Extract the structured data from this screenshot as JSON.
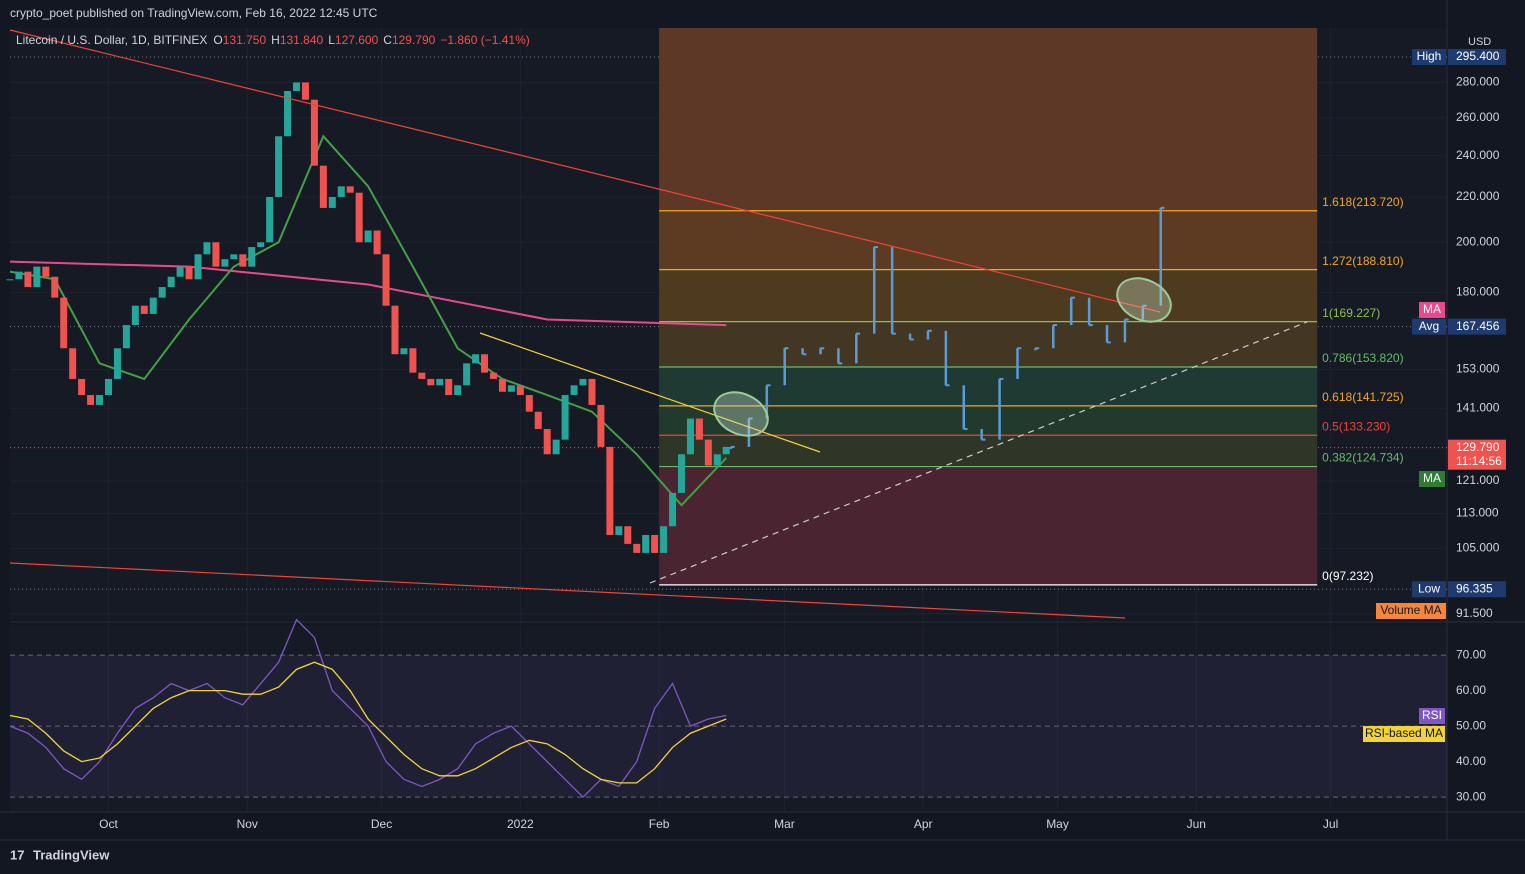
{
  "header": {
    "publisher": "crypto_poet published on TradingView.com, Feb 16, 2022 12:45 UTC",
    "currency": "USD",
    "brand": "TradingView"
  },
  "legend": {
    "symbol": "Litecoin / U.S. Dollar, 1D, BITFINEX",
    "ohlc": [
      {
        "key": "O",
        "value": "131.750"
      },
      {
        "key": "H",
        "value": "131.840"
      },
      {
        "key": "L",
        "value": "127.600"
      },
      {
        "key": "C",
        "value": "129.790"
      }
    ],
    "change": "−1.860 (−1.41%)"
  },
  "chart_data": [
    {
      "type": "candlestick",
      "log": true,
      "ylim": [
        90.3,
        314
      ],
      "xlim": [
        0,
        321
      ],
      "yticks": [
        {
          "value": 280,
          "label": "280.000"
        },
        {
          "value": 260,
          "label": "260.000"
        },
        {
          "value": 240,
          "label": "240.000"
        },
        {
          "value": 220,
          "label": "220.000"
        },
        {
          "value": 200,
          "label": "200.000"
        },
        {
          "value": 180,
          "label": "180.000"
        },
        {
          "value": 153,
          "label": "153.000"
        },
        {
          "value": 141,
          "label": "141.000"
        },
        {
          "value": 121,
          "label": "121.000"
        },
        {
          "value": 113,
          "label": "113.000"
        },
        {
          "value": 105,
          "label": "105.000"
        },
        {
          "value": 91.5,
          "label": "91.500"
        }
      ],
      "xticks": [
        {
          "value": 22,
          "label": "Oct"
        },
        {
          "value": 53,
          "label": "Nov"
        },
        {
          "value": 83,
          "label": "Dec"
        },
        {
          "value": 114,
          "label": "2022"
        },
        {
          "value": 145,
          "label": "Feb"
        },
        {
          "value": 173,
          "label": "Mar"
        },
        {
          "value": 204,
          "label": "Apr"
        },
        {
          "value": 234,
          "label": "May"
        },
        {
          "value": 265,
          "label": "Jun"
        },
        {
          "value": 295,
          "label": "Jul"
        }
      ],
      "up_color": "#26a69a",
      "down_color": "#ef5350",
      "x": [
        0,
        2,
        4,
        6,
        8,
        10,
        12,
        14,
        16,
        18,
        20,
        22,
        24,
        26,
        28,
        30,
        32,
        34,
        36,
        38,
        40,
        42,
        44,
        46,
        48,
        50,
        52,
        54,
        56,
        58,
        60,
        62,
        64,
        66,
        68,
        70,
        72,
        74,
        76,
        78,
        80,
        82,
        84,
        86,
        88,
        90,
        92,
        94,
        96,
        98,
        100,
        102,
        104,
        106,
        108,
        110,
        112,
        114,
        116,
        118,
        120,
        122,
        124,
        126,
        128,
        130,
        132,
        134,
        136,
        138,
        140,
        142,
        144,
        146,
        148,
        150,
        152,
        154,
        156,
        158,
        160
      ],
      "values": [
        185,
        188,
        182,
        190,
        186,
        178,
        160,
        150,
        145,
        142,
        145,
        150,
        160,
        168,
        175,
        172,
        178,
        182,
        186,
        190,
        185,
        195,
        200,
        190,
        193,
        195,
        190,
        198,
        200,
        220,
        250,
        275,
        280,
        270,
        235,
        215,
        220,
        225,
        222,
        200,
        205,
        195,
        175,
        158,
        160,
        152,
        150,
        148,
        150,
        145,
        148,
        155,
        158,
        152,
        150,
        146,
        148,
        145,
        140,
        135,
        128,
        132,
        145,
        148,
        150,
        142,
        130,
        108,
        110,
        106,
        104,
        108,
        104,
        110,
        118,
        128,
        138,
        132,
        125,
        128,
        130
      ],
      "projection": {
        "color": "#5b9bd5",
        "x": [
          161,
          165,
          169,
          173,
          177,
          181,
          185,
          189,
          193,
          197,
          201,
          205,
          209,
          213,
          217,
          221,
          225,
          229,
          233,
          237,
          241,
          245,
          249,
          253,
          257
        ],
        "values": [
          130,
          138,
          148,
          160,
          158,
          160,
          155,
          165,
          198,
          165,
          163,
          166,
          148,
          135,
          132,
          150,
          160,
          160,
          168,
          178,
          168,
          162,
          170,
          175,
          215
        ]
      },
      "ma_lines": [
        {
          "color": "#e84a8c",
          "x": [
            0,
            40,
            80,
            120,
            160
          ],
          "values": [
            192,
            190,
            183,
            170,
            168
          ]
        },
        {
          "color": "#43a047",
          "x": [
            0,
            10,
            20,
            30,
            40,
            50,
            60,
            70,
            80,
            90,
            100,
            110,
            120,
            130,
            140,
            150,
            160
          ],
          "values": [
            188,
            185,
            155,
            150,
            170,
            190,
            200,
            250,
            225,
            190,
            160,
            150,
            145,
            140,
            128,
            115,
            127
          ]
        }
      ],
      "fib": {
        "x": [
          145,
          292
        ],
        "levels": [
          {
            "label": "1.618(213.720)",
            "value": 213.72,
            "color": "#f5a623",
            "fill": "#5c3b22"
          },
          {
            "label": "1.272(188.810)",
            "value": 188.81,
            "color": "#f5a623",
            "fill": "#4e3a1f"
          },
          {
            "label": "1(169.227)",
            "value": 169.227,
            "color": "#8bc34a",
            "fill": "#433622"
          },
          {
            "label": "0.786(153.820)",
            "value": 153.82,
            "color": "#66bb6a",
            "fill": "#1e3a32"
          },
          {
            "label": "0.618(141.725)",
            "value": 141.725,
            "color": "#f5a623",
            "fill": "#22392e"
          },
          {
            "label": "0.5(133.230)",
            "value": 133.23,
            "color": "#f44336",
            "fill": "#2f3628"
          },
          {
            "label": "0.382(124.734)",
            "value": 124.734,
            "color": "#66bb6a",
            "fill": "#4a2531"
          },
          {
            "label": "0(97.232)",
            "value": 97.232,
            "color": "#ffffff",
            "fill": "#1b302b"
          }
        ],
        "top_fill": "#5e3826"
      },
      "tags": {
        "high": {
          "label": "High",
          "value": 295.4,
          "value_label": "295.400"
        },
        "avg": {
          "label": "Avg",
          "value": 167.456,
          "value_label": "167.456"
        },
        "low": {
          "label": "Low",
          "value": 96.335,
          "value_label": "96.335"
        },
        "last": {
          "value": 129.79,
          "value_label": "129.790",
          "timer": "11:14:56"
        },
        "ma": "MA",
        "volume_ma": "Volume MA"
      }
    },
    {
      "type": "line",
      "ylim": [
        25.8,
        78.5
      ],
      "yticks": [
        {
          "value": 70,
          "label": "70.00"
        },
        {
          "value": 60,
          "label": "60.00"
        },
        {
          "value": 50,
          "label": "50.00"
        },
        {
          "value": 40,
          "label": "40.00"
        },
        {
          "value": 30,
          "label": "30.00"
        }
      ],
      "x": [
        0,
        4,
        8,
        12,
        16,
        20,
        24,
        28,
        32,
        36,
        40,
        44,
        48,
        52,
        56,
        60,
        64,
        68,
        72,
        76,
        80,
        84,
        88,
        92,
        96,
        100,
        104,
        108,
        112,
        116,
        120,
        124,
        128,
        132,
        136,
        140,
        144,
        148,
        152,
        156,
        160
      ],
      "series": [
        {
          "name": "RSI",
          "color": "#7e57c2",
          "values": [
            50,
            48,
            44,
            38,
            35,
            40,
            48,
            55,
            58,
            62,
            60,
            62,
            58,
            56,
            62,
            68,
            80,
            75,
            60,
            55,
            50,
            40,
            35,
            33,
            35,
            38,
            45,
            48,
            50,
            45,
            40,
            35,
            30,
            35,
            33,
            40,
            55,
            62,
            50,
            52,
            53
          ]
        },
        {
          "name": "RSI-based MA",
          "color": "#f2d33a",
          "values": [
            53,
            52,
            48,
            43,
            40,
            41,
            45,
            50,
            55,
            58,
            60,
            60,
            60,
            59,
            59,
            61,
            66,
            68,
            66,
            60,
            52,
            47,
            42,
            38,
            36,
            36,
            38,
            41,
            44,
            46,
            45,
            42,
            38,
            35,
            34,
            34,
            38,
            44,
            48,
            50,
            52
          ]
        }
      ]
    }
  ]
}
